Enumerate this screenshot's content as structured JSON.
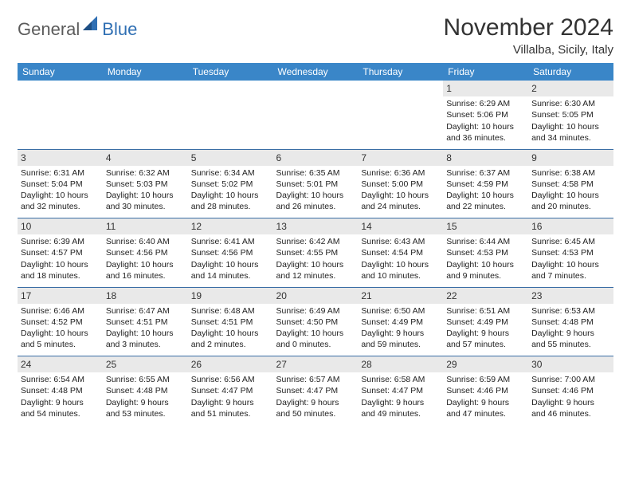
{
  "logo": {
    "general": "General",
    "blue": "Blue"
  },
  "title": "November 2024",
  "location": "Villalba, Sicily, Italy",
  "colors": {
    "header_bg": "#3a86c8",
    "header_text": "#ffffff",
    "daynum_bg": "#e9e9e9",
    "rule": "#3a6ea5",
    "logo_gray": "#5b5b5b",
    "logo_blue": "#2f6fb3"
  },
  "day_headers": [
    "Sunday",
    "Monday",
    "Tuesday",
    "Wednesday",
    "Thursday",
    "Friday",
    "Saturday"
  ],
  "weeks": [
    [
      null,
      null,
      null,
      null,
      null,
      {
        "n": "1",
        "sr": "Sunrise: 6:29 AM",
        "ss": "Sunset: 5:06 PM",
        "dl1": "Daylight: 10 hours",
        "dl2": "and 36 minutes."
      },
      {
        "n": "2",
        "sr": "Sunrise: 6:30 AM",
        "ss": "Sunset: 5:05 PM",
        "dl1": "Daylight: 10 hours",
        "dl2": "and 34 minutes."
      }
    ],
    [
      {
        "n": "3",
        "sr": "Sunrise: 6:31 AM",
        "ss": "Sunset: 5:04 PM",
        "dl1": "Daylight: 10 hours",
        "dl2": "and 32 minutes."
      },
      {
        "n": "4",
        "sr": "Sunrise: 6:32 AM",
        "ss": "Sunset: 5:03 PM",
        "dl1": "Daylight: 10 hours",
        "dl2": "and 30 minutes."
      },
      {
        "n": "5",
        "sr": "Sunrise: 6:34 AM",
        "ss": "Sunset: 5:02 PM",
        "dl1": "Daylight: 10 hours",
        "dl2": "and 28 minutes."
      },
      {
        "n": "6",
        "sr": "Sunrise: 6:35 AM",
        "ss": "Sunset: 5:01 PM",
        "dl1": "Daylight: 10 hours",
        "dl2": "and 26 minutes."
      },
      {
        "n": "7",
        "sr": "Sunrise: 6:36 AM",
        "ss": "Sunset: 5:00 PM",
        "dl1": "Daylight: 10 hours",
        "dl2": "and 24 minutes."
      },
      {
        "n": "8",
        "sr": "Sunrise: 6:37 AM",
        "ss": "Sunset: 4:59 PM",
        "dl1": "Daylight: 10 hours",
        "dl2": "and 22 minutes."
      },
      {
        "n": "9",
        "sr": "Sunrise: 6:38 AM",
        "ss": "Sunset: 4:58 PM",
        "dl1": "Daylight: 10 hours",
        "dl2": "and 20 minutes."
      }
    ],
    [
      {
        "n": "10",
        "sr": "Sunrise: 6:39 AM",
        "ss": "Sunset: 4:57 PM",
        "dl1": "Daylight: 10 hours",
        "dl2": "and 18 minutes."
      },
      {
        "n": "11",
        "sr": "Sunrise: 6:40 AM",
        "ss": "Sunset: 4:56 PM",
        "dl1": "Daylight: 10 hours",
        "dl2": "and 16 minutes."
      },
      {
        "n": "12",
        "sr": "Sunrise: 6:41 AM",
        "ss": "Sunset: 4:56 PM",
        "dl1": "Daylight: 10 hours",
        "dl2": "and 14 minutes."
      },
      {
        "n": "13",
        "sr": "Sunrise: 6:42 AM",
        "ss": "Sunset: 4:55 PM",
        "dl1": "Daylight: 10 hours",
        "dl2": "and 12 minutes."
      },
      {
        "n": "14",
        "sr": "Sunrise: 6:43 AM",
        "ss": "Sunset: 4:54 PM",
        "dl1": "Daylight: 10 hours",
        "dl2": "and 10 minutes."
      },
      {
        "n": "15",
        "sr": "Sunrise: 6:44 AM",
        "ss": "Sunset: 4:53 PM",
        "dl1": "Daylight: 10 hours",
        "dl2": "and 9 minutes."
      },
      {
        "n": "16",
        "sr": "Sunrise: 6:45 AM",
        "ss": "Sunset: 4:53 PM",
        "dl1": "Daylight: 10 hours",
        "dl2": "and 7 minutes."
      }
    ],
    [
      {
        "n": "17",
        "sr": "Sunrise: 6:46 AM",
        "ss": "Sunset: 4:52 PM",
        "dl1": "Daylight: 10 hours",
        "dl2": "and 5 minutes."
      },
      {
        "n": "18",
        "sr": "Sunrise: 6:47 AM",
        "ss": "Sunset: 4:51 PM",
        "dl1": "Daylight: 10 hours",
        "dl2": "and 3 minutes."
      },
      {
        "n": "19",
        "sr": "Sunrise: 6:48 AM",
        "ss": "Sunset: 4:51 PM",
        "dl1": "Daylight: 10 hours",
        "dl2": "and 2 minutes."
      },
      {
        "n": "20",
        "sr": "Sunrise: 6:49 AM",
        "ss": "Sunset: 4:50 PM",
        "dl1": "Daylight: 10 hours",
        "dl2": "and 0 minutes."
      },
      {
        "n": "21",
        "sr": "Sunrise: 6:50 AM",
        "ss": "Sunset: 4:49 PM",
        "dl1": "Daylight: 9 hours",
        "dl2": "and 59 minutes."
      },
      {
        "n": "22",
        "sr": "Sunrise: 6:51 AM",
        "ss": "Sunset: 4:49 PM",
        "dl1": "Daylight: 9 hours",
        "dl2": "and 57 minutes."
      },
      {
        "n": "23",
        "sr": "Sunrise: 6:53 AM",
        "ss": "Sunset: 4:48 PM",
        "dl1": "Daylight: 9 hours",
        "dl2": "and 55 minutes."
      }
    ],
    [
      {
        "n": "24",
        "sr": "Sunrise: 6:54 AM",
        "ss": "Sunset: 4:48 PM",
        "dl1": "Daylight: 9 hours",
        "dl2": "and 54 minutes."
      },
      {
        "n": "25",
        "sr": "Sunrise: 6:55 AM",
        "ss": "Sunset: 4:48 PM",
        "dl1": "Daylight: 9 hours",
        "dl2": "and 53 minutes."
      },
      {
        "n": "26",
        "sr": "Sunrise: 6:56 AM",
        "ss": "Sunset: 4:47 PM",
        "dl1": "Daylight: 9 hours",
        "dl2": "and 51 minutes."
      },
      {
        "n": "27",
        "sr": "Sunrise: 6:57 AM",
        "ss": "Sunset: 4:47 PM",
        "dl1": "Daylight: 9 hours",
        "dl2": "and 50 minutes."
      },
      {
        "n": "28",
        "sr": "Sunrise: 6:58 AM",
        "ss": "Sunset: 4:47 PM",
        "dl1": "Daylight: 9 hours",
        "dl2": "and 49 minutes."
      },
      {
        "n": "29",
        "sr": "Sunrise: 6:59 AM",
        "ss": "Sunset: 4:46 PM",
        "dl1": "Daylight: 9 hours",
        "dl2": "and 47 minutes."
      },
      {
        "n": "30",
        "sr": "Sunrise: 7:00 AM",
        "ss": "Sunset: 4:46 PM",
        "dl1": "Daylight: 9 hours",
        "dl2": "and 46 minutes."
      }
    ]
  ]
}
